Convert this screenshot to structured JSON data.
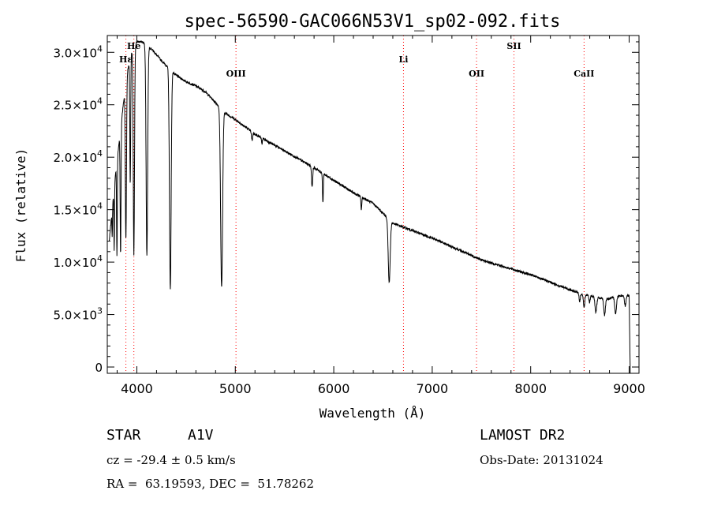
{
  "chart_data": {
    "type": "line",
    "title": "spec-56590-GAC066N53V1_sp02-092.fits",
    "xlabel": "Wavelength (Å)",
    "ylabel": "Flux (relative)",
    "xlim": [
      3700,
      9100
    ],
    "ylim": [
      -600,
      31600
    ],
    "x_ticks": [
      {
        "value": 4000,
        "label": "4000"
      },
      {
        "value": 5000,
        "label": "5000"
      },
      {
        "value": 6000,
        "label": "6000"
      },
      {
        "value": 7000,
        "label": "7000"
      },
      {
        "value": 8000,
        "label": "8000"
      },
      {
        "value": 9000,
        "label": "9000"
      }
    ],
    "y_ticks": [
      {
        "value": 0,
        "mantissa": "0",
        "exp": ""
      },
      {
        "value": 5000,
        "mantissa": "5.0×10",
        "exp": "3"
      },
      {
        "value": 10000,
        "mantissa": "1.0×10",
        "exp": "4"
      },
      {
        "value": 15000,
        "mantissa": "1.5×10",
        "exp": "4"
      },
      {
        "value": 20000,
        "mantissa": "2.0×10",
        "exp": "4"
      },
      {
        "value": 25000,
        "mantissa": "2.5×10",
        "exp": "4"
      },
      {
        "value": 30000,
        "mantissa": "3.0×10",
        "exp": "4"
      }
    ],
    "line_markers": [
      {
        "label": "Hε",
        "x": 3889,
        "row": 2
      },
      {
        "label": "He",
        "x": 3970,
        "row": 1
      },
      {
        "label": "OIII",
        "x": 5007,
        "row": 3
      },
      {
        "label": "Li",
        "x": 6708,
        "row": 2
      },
      {
        "label": "OII",
        "x": 7450,
        "row": 3
      },
      {
        "label": "SII",
        "x": 7830,
        "row": 1
      },
      {
        "label": "CaII",
        "x": 8542,
        "row": 3
      }
    ],
    "continuum": [
      [
        3720,
        12000
      ],
      [
        3780,
        18000
      ],
      [
        3850,
        24000
      ],
      [
        3900,
        28000
      ],
      [
        3960,
        30500
      ],
      [
        4000,
        31000
      ],
      [
        4050,
        31000
      ],
      [
        4100,
        30700
      ],
      [
        4150,
        30300
      ],
      [
        4250,
        29200
      ],
      [
        4400,
        27800
      ],
      [
        4500,
        27200
      ],
      [
        4600,
        26800
      ],
      [
        4700,
        26200
      ],
      [
        4800,
        25200
      ],
      [
        4900,
        24200
      ],
      [
        5000,
        23600
      ],
      [
        5200,
        22200
      ],
      [
        5500,
        20600
      ],
      [
        5800,
        19000
      ],
      [
        6000,
        17800
      ],
      [
        6200,
        16600
      ],
      [
        6400,
        15600
      ],
      [
        6600,
        13700
      ],
      [
        7000,
        12300
      ],
      [
        7500,
        10200
      ],
      [
        8000,
        8800
      ],
      [
        8500,
        7000
      ],
      [
        8700,
        6600
      ],
      [
        8800,
        6500
      ],
      [
        8900,
        6800
      ],
      [
        9000,
        6800
      ],
      [
        9010,
        0
      ]
    ],
    "absorption_lines": [
      {
        "x": 3750,
        "depth": 2500,
        "width": 4
      },
      {
        "x": 3770,
        "depth": 6000,
        "width": 4
      },
      {
        "x": 3798,
        "depth": 9000,
        "width": 5
      },
      {
        "x": 3835,
        "depth": 12000,
        "width": 6
      },
      {
        "x": 3889,
        "depth": 15000,
        "width": 8
      },
      {
        "x": 3933,
        "depth": 12000,
        "width": 6
      },
      {
        "x": 3970,
        "depth": 20000,
        "width": 9
      },
      {
        "x": 4102,
        "depth": 20000,
        "width": 11
      },
      {
        "x": 4340,
        "depth": 21000,
        "width": 12
      },
      {
        "x": 4861,
        "depth": 17000,
        "width": 14
      },
      {
        "x": 5170,
        "depth": 800,
        "width": 8
      },
      {
        "x": 5270,
        "depth": 600,
        "width": 6
      },
      {
        "x": 5780,
        "depth": 2000,
        "width": 8
      },
      {
        "x": 5890,
        "depth": 2800,
        "width": 6
      },
      {
        "x": 6280,
        "depth": 1200,
        "width": 6
      },
      {
        "x": 6563,
        "depth": 6000,
        "width": 14
      },
      {
        "x": 8498,
        "depth": 800,
        "width": 8
      },
      {
        "x": 8542,
        "depth": 1200,
        "width": 10
      },
      {
        "x": 8598,
        "depth": 700,
        "width": 8
      },
      {
        "x": 8662,
        "depth": 1500,
        "width": 12
      },
      {
        "x": 8750,
        "depth": 1600,
        "width": 12
      },
      {
        "x": 8863,
        "depth": 1600,
        "width": 12
      },
      {
        "x": 8960,
        "depth": 1000,
        "width": 10
      }
    ]
  },
  "footer": {
    "object_type": "STAR",
    "subclass": "A1V",
    "survey": "LAMOST DR2",
    "redshift": "cz = -29.4 ± 0.5 km/s",
    "obs_date": "Obs-Date: 20131024",
    "coords": "RA =  63.19593, DEC =  51.78262"
  },
  "colors": {
    "spectrum": "#000000",
    "marker_line": "#ff0000",
    "axis": "#000000",
    "background": "#ffffff"
  }
}
